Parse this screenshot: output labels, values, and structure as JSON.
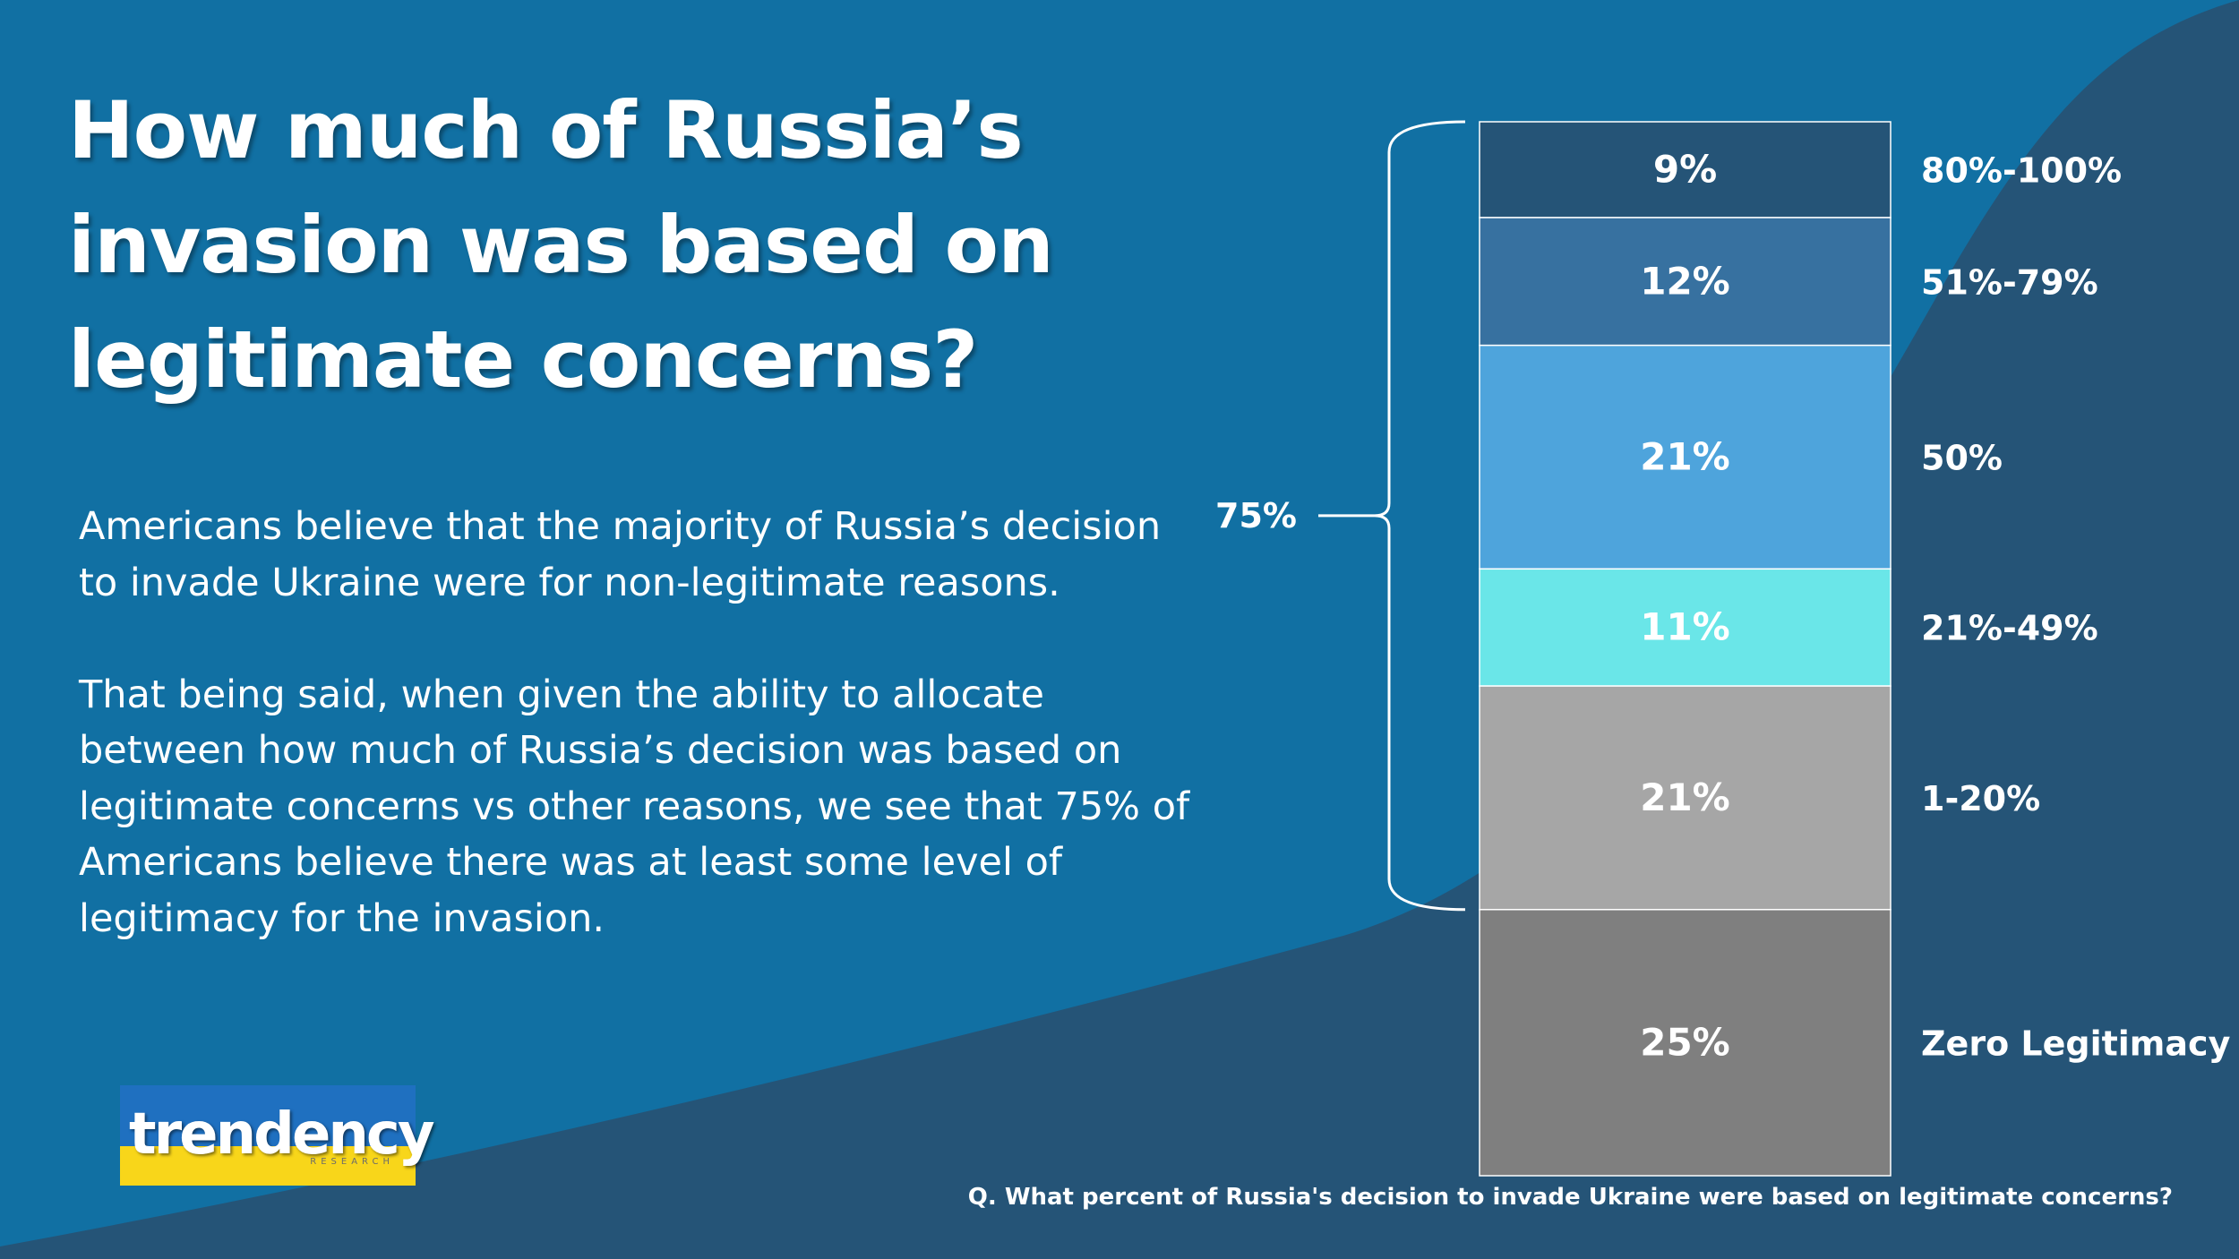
{
  "colors": {
    "background": "#1170a3",
    "wave": "#255477"
  },
  "title_lines": [
    "How much of Russia’s",
    "invasion was based on",
    "legitimate concerns?"
  ],
  "body": {
    "paragraph1": "Americans believe that the majority of Russia’s decision to invade Ukraine were for non-legitimate reasons.",
    "paragraph2": "That being said, when given the ability to allocate between how much of Russia’s decision was based on legitimate concerns vs other reasons, we see that 75% of Americans believe there was at least some level of legitimacy for the invasion."
  },
  "chart_data": {
    "type": "bar",
    "stacked": true,
    "title": "How much of Russia’s invasion was based on legitimate concerns?",
    "question": "Q. What percent of Russia's decision to invade Ukraine were based on legitimate concerns?",
    "categories": [
      "80%-100%",
      "51%-79%",
      "50%",
      "21%-49%",
      "1-20%",
      "Zero Legitimacy"
    ],
    "values": [
      9,
      12,
      21,
      11,
      21,
      25
    ],
    "value_labels": [
      "9%",
      "12%",
      "21%",
      "11%",
      "21%",
      "25%"
    ],
    "colors": [
      "#255477",
      "#3771a0",
      "#4ea4dc",
      "#6ae6e8",
      "#a6a6a6",
      "#7f7f7f"
    ],
    "bracket": {
      "label": "75%",
      "value": 75,
      "covers": [
        "80%-100%",
        "51%-79%",
        "50%",
        "21%-49%",
        "1-20%"
      ]
    },
    "unit": "%"
  },
  "logo": {
    "word": "trendency",
    "sub": "RESEARCH"
  }
}
